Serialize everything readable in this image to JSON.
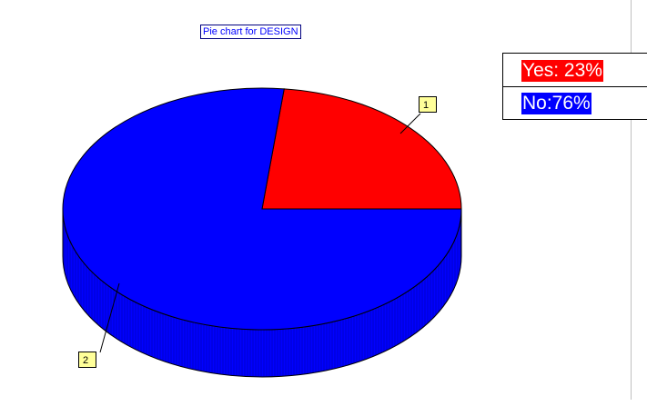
{
  "chart_data": {
    "type": "pie",
    "title": "Pie chart for DESIGN",
    "slices": [
      {
        "label": "1",
        "legend": "Yes: 23%",
        "value": 23,
        "color": "#ff0000"
      },
      {
        "label": "2",
        "legend": "No:76%",
        "value": 76,
        "color": "#0000ff"
      }
    ],
    "style": "3d-extruded",
    "legend_position": "top-right"
  }
}
